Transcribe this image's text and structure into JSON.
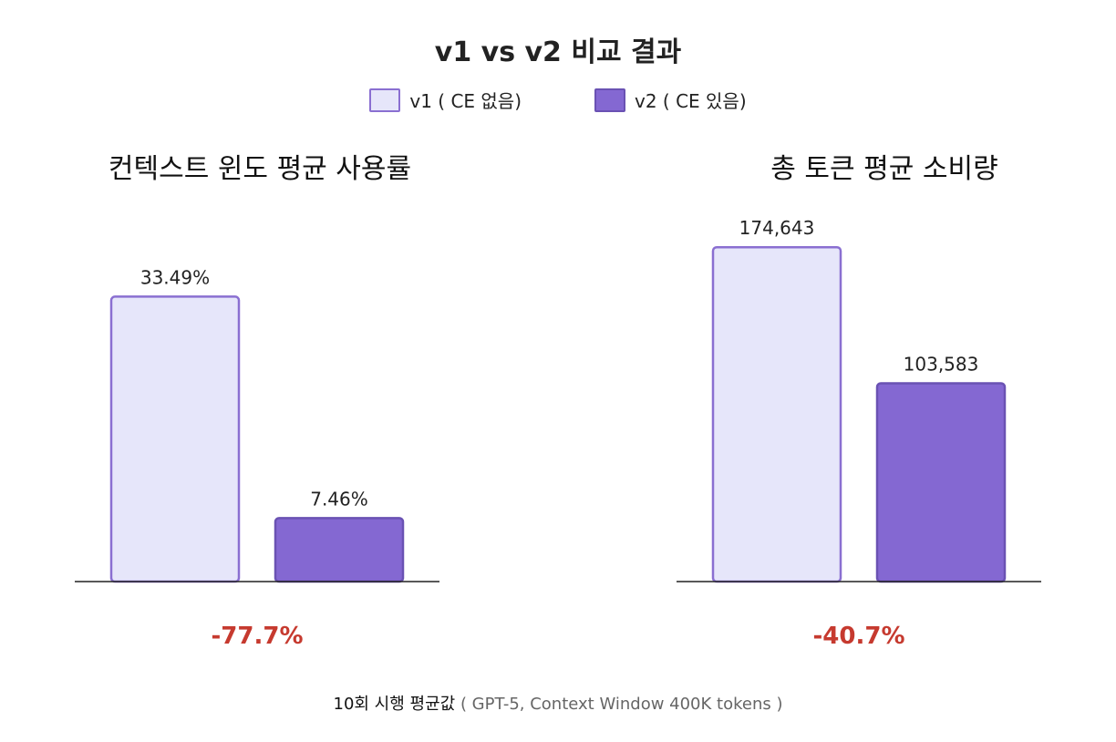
{
  "chart_data": [
    {
      "type": "bar",
      "title": "v1 vs v2 비교 결과",
      "panel_title": "컨텍스트 윈도 평균 사용률",
      "categories": [
        "v1 ( CE 없음)",
        "v2 ( CE 있음)"
      ],
      "values": [
        33.49,
        7.46
      ],
      "value_labels": [
        "33.49%",
        "7.46%"
      ],
      "unit": "%",
      "ylim": [
        0,
        45
      ],
      "change_label": "-77.7%",
      "legend": "top-center"
    },
    {
      "type": "bar",
      "panel_title": "총 토큰 평균 소비량",
      "categories": [
        "v1 ( CE 없음)",
        "v2 ( CE 있음)"
      ],
      "values": [
        174643,
        103583
      ],
      "value_labels": [
        "174,643",
        "103,583"
      ],
      "ylim": [
        0,
        200000
      ],
      "change_label": "-40.7%"
    }
  ],
  "header": {
    "title": "v1 vs v2 비교 결과",
    "legend": [
      {
        "label": "v1 ( CE 없음)",
        "color": "#e6e6fa",
        "border": "#8a6fd1"
      },
      {
        "label": "v2 ( CE 있음)",
        "color": "#8468d2",
        "border": "#6a52b3"
      }
    ]
  },
  "footer": {
    "main": "10회 시행 평균값",
    "note": " ( GPT-5, Context Window 400K tokens )"
  }
}
